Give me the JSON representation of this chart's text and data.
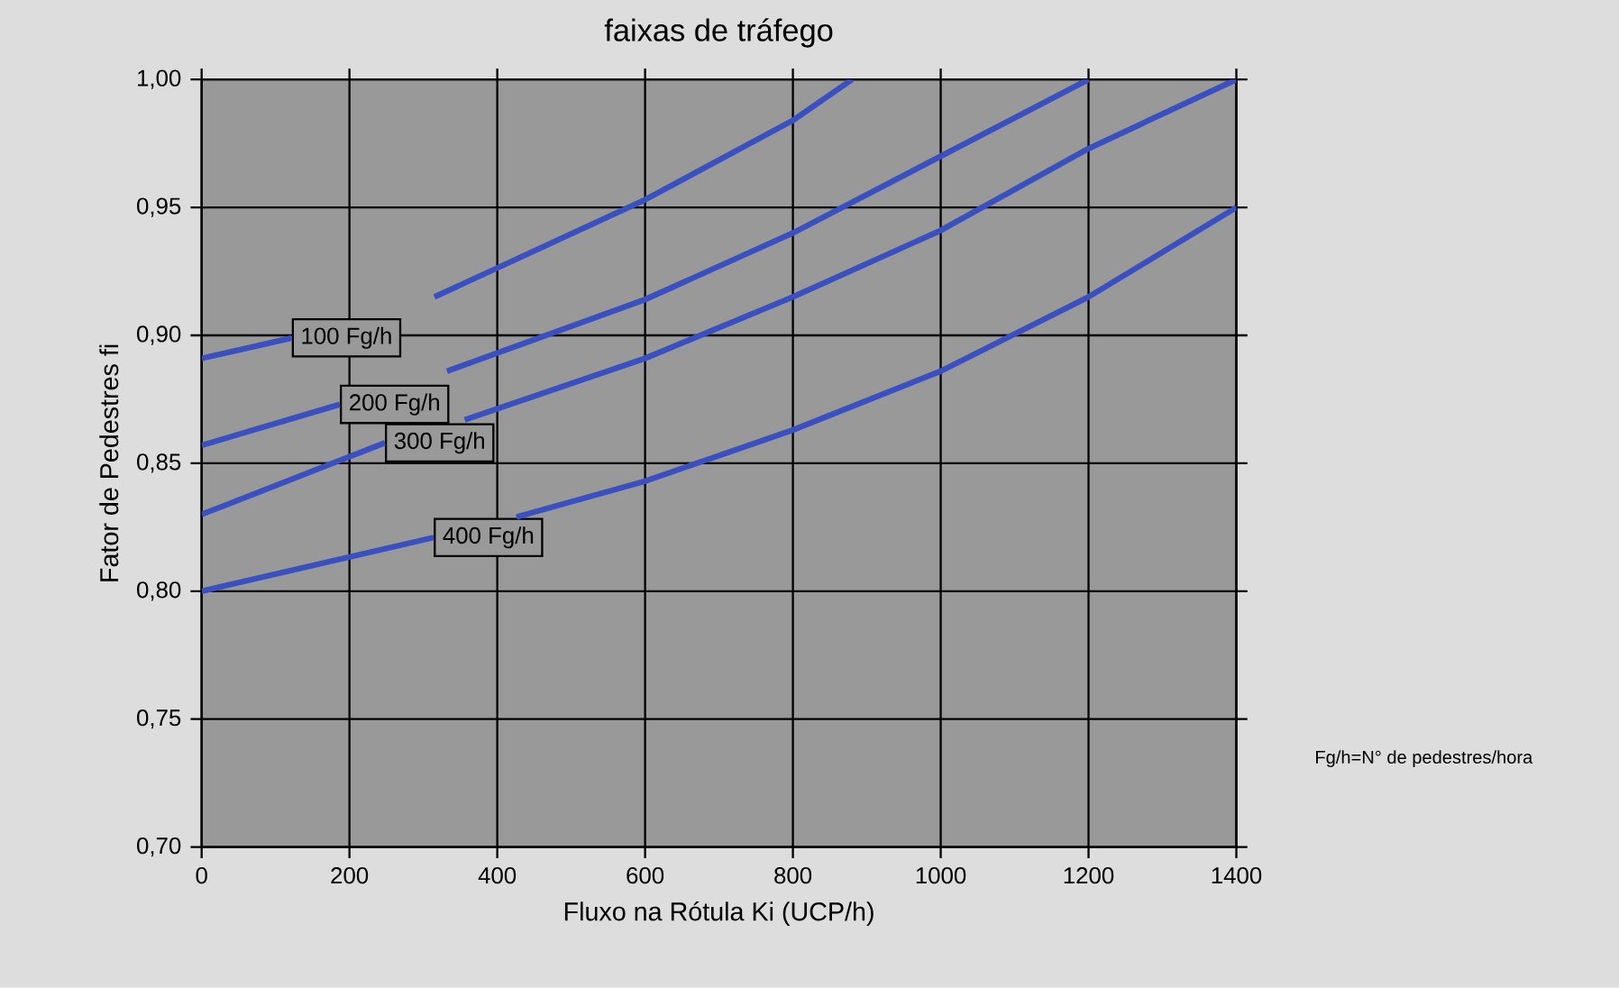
{
  "chart_data": {
    "type": "line",
    "title": "faixas de tráfego",
    "xlabel": "Fluxo na Rótula Ki (UCP/h)",
    "ylabel": "Fator de Pedestres fi",
    "xlim": [
      0,
      1400
    ],
    "xticks": [
      0,
      200,
      400,
      600,
      800,
      1000,
      1200,
      1400
    ],
    "ylim": [
      0.7,
      1.0
    ],
    "yticks": [
      {
        "value": 0.7,
        "label": "0,70"
      },
      {
        "value": 0.75,
        "label": "0,75"
      },
      {
        "value": 0.8,
        "label": "0,80"
      },
      {
        "value": 0.85,
        "label": "0,85"
      },
      {
        "value": 0.9,
        "label": "0,90"
      },
      {
        "value": 0.95,
        "label": "0,95"
      },
      {
        "value": 1.0,
        "label": "1,00"
      }
    ],
    "grid": true,
    "legend": false,
    "marker": "none",
    "line_style": "solid",
    "series": [
      {
        "name": "100 Fg/h",
        "color": "#3a4fc0",
        "x": [
          0,
          122,
          220,
          315,
          600,
          800,
          880
        ],
        "values": [
          0.891,
          0.899,
          null,
          0.915,
          0.953,
          0.984,
          1.0
        ]
      },
      {
        "name": "200 Fg/h",
        "color": "#3a4fc0",
        "x": [
          0,
          187,
          260,
          332,
          600,
          800,
          1000,
          1200
        ],
        "values": [
          0.857,
          0.873,
          null,
          0.886,
          0.914,
          0.94,
          0.97,
          1.0
        ]
      },
      {
        "name": "300 Fg/h",
        "color": "#3a4fc0",
        "x": [
          0,
          248,
          300,
          356,
          600,
          800,
          1000,
          1200,
          1400
        ],
        "values": [
          0.83,
          0.858,
          null,
          0.867,
          0.891,
          0.915,
          0.941,
          0.973,
          1.0
        ]
      },
      {
        "name": "400 Fg/h",
        "color": "#3a4fc0",
        "x": [
          0,
          314,
          370,
          426,
          600,
          800,
          1000,
          1200,
          1400
        ],
        "values": [
          0.8,
          0.821,
          null,
          0.829,
          0.843,
          0.863,
          0.886,
          0.915,
          0.95
        ]
      }
    ],
    "annotations": [
      "Fg/h=N° de pedestres/hora"
    ]
  }
}
